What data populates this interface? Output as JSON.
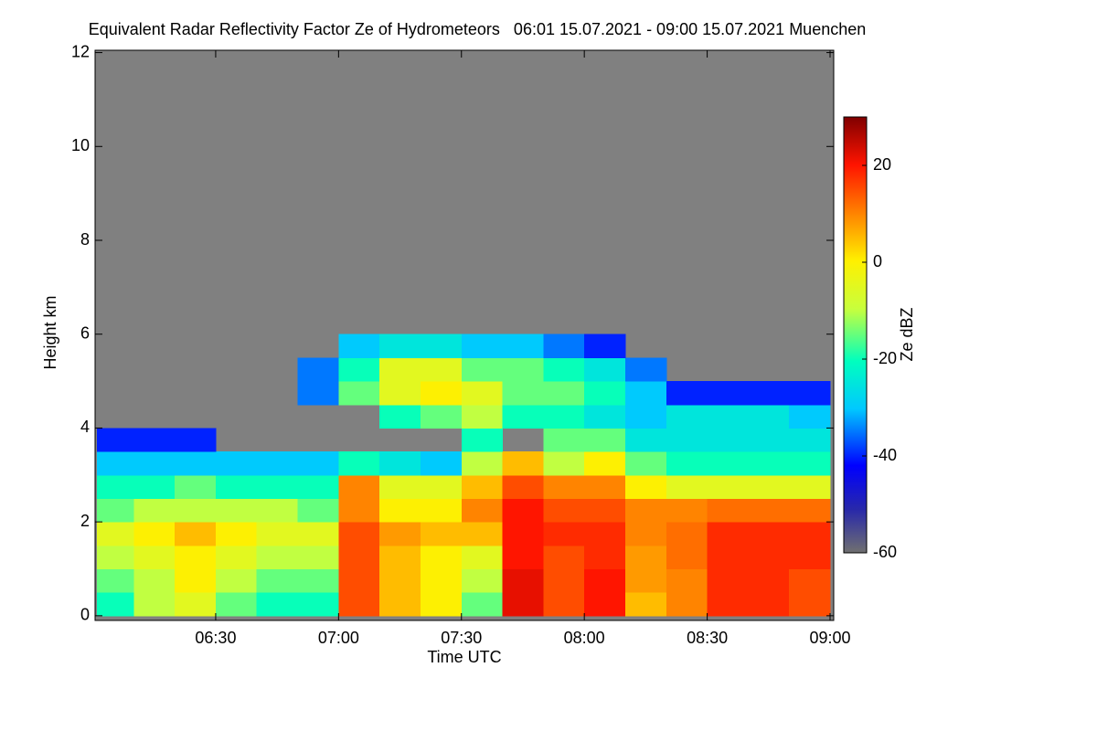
{
  "chart_data": {
    "type": "heatmap",
    "title": "Equivalent Radar Reflectivity Factor Ze of Hydrometeors   06:01 15.07.2021 - 09:00 15.07.2021 Muenchen",
    "xlabel": "Time UTC",
    "ylabel": "Height km",
    "colorbar_label": "Ze dBZ",
    "xlim": [
      "06:01",
      "09:00"
    ],
    "xticks": [
      "06:30",
      "07:00",
      "07:30",
      "08:00",
      "08:30",
      "09:00"
    ],
    "ylim": [
      -0.1,
      12.05
    ],
    "yticks": [
      0,
      2,
      4,
      6,
      8,
      10,
      12
    ],
    "zlim": [
      -60,
      30
    ],
    "zticks": [
      -60,
      -40,
      -20,
      0,
      20
    ],
    "colormap": "jet",
    "nodata_color": "#808080",
    "x_bins": [
      "06:01",
      "06:10",
      "06:20",
      "06:30",
      "06:40",
      "06:50",
      "07:00",
      "07:10",
      "07:20",
      "07:30",
      "07:40",
      "07:50",
      "08:00",
      "08:10",
      "08:20",
      "08:30",
      "08:40",
      "08:50",
      "09:00"
    ],
    "y_bins": [
      0,
      0.5,
      1,
      1.5,
      2,
      2.5,
      3,
      3.5,
      4,
      4.5,
      5,
      5.5,
      6
    ],
    "z": [
      [
        -20,
        -10,
        -5,
        -15,
        -20,
        -20,
        15,
        5,
        0,
        -15,
        22,
        15,
        20,
        5,
        10,
        18,
        18,
        15
      ],
      [
        -15,
        -10,
        0,
        -10,
        -15,
        -15,
        15,
        5,
        0,
        -10,
        22,
        15,
        20,
        8,
        10,
        18,
        18,
        15
      ],
      [
        -10,
        -5,
        0,
        -5,
        -10,
        -10,
        15,
        5,
        0,
        -5,
        20,
        15,
        18,
        8,
        12,
        18,
        18,
        18
      ],
      [
        -5,
        0,
        5,
        0,
        -5,
        -5,
        15,
        8,
        5,
        5,
        20,
        18,
        18,
        10,
        12,
        18,
        18,
        18
      ],
      [
        -15,
        -10,
        -10,
        -10,
        -10,
        -15,
        10,
        0,
        0,
        10,
        20,
        15,
        15,
        10,
        10,
        12,
        12,
        12
      ],
      [
        -20,
        -20,
        -15,
        -20,
        -20,
        -20,
        10,
        -5,
        -5,
        5,
        15,
        10,
        10,
        0,
        -5,
        -5,
        -5,
        -5
      ],
      [
        -30,
        -30,
        -30,
        -30,
        -30,
        -30,
        -20,
        -25,
        -30,
        -10,
        5,
        -10,
        0,
        -15,
        -20,
        -20,
        -20,
        -20
      ],
      [
        -40,
        -40,
        -40,
        null,
        null,
        null,
        null,
        null,
        null,
        -20,
        null,
        -15,
        -15,
        -25,
        -25,
        -25,
        -25,
        -25
      ],
      [
        null,
        null,
        null,
        null,
        null,
        null,
        null,
        -20,
        -15,
        -10,
        -20,
        -20,
        -25,
        -30,
        -25,
        -25,
        -25,
        -30
      ],
      [
        null,
        null,
        null,
        null,
        null,
        -35,
        -15,
        -5,
        0,
        -5,
        -15,
        -15,
        -20,
        -30,
        -40,
        -40,
        -40,
        -40
      ],
      [
        null,
        null,
        null,
        null,
        null,
        -35,
        -20,
        -5,
        -5,
        -15,
        -15,
        -20,
        -25,
        -35,
        null,
        null,
        null,
        null
      ],
      [
        null,
        null,
        null,
        null,
        null,
        null,
        -30,
        -25,
        -25,
        -30,
        -30,
        -35,
        -40,
        null,
        null,
        null,
        null,
        null
      ]
    ]
  }
}
